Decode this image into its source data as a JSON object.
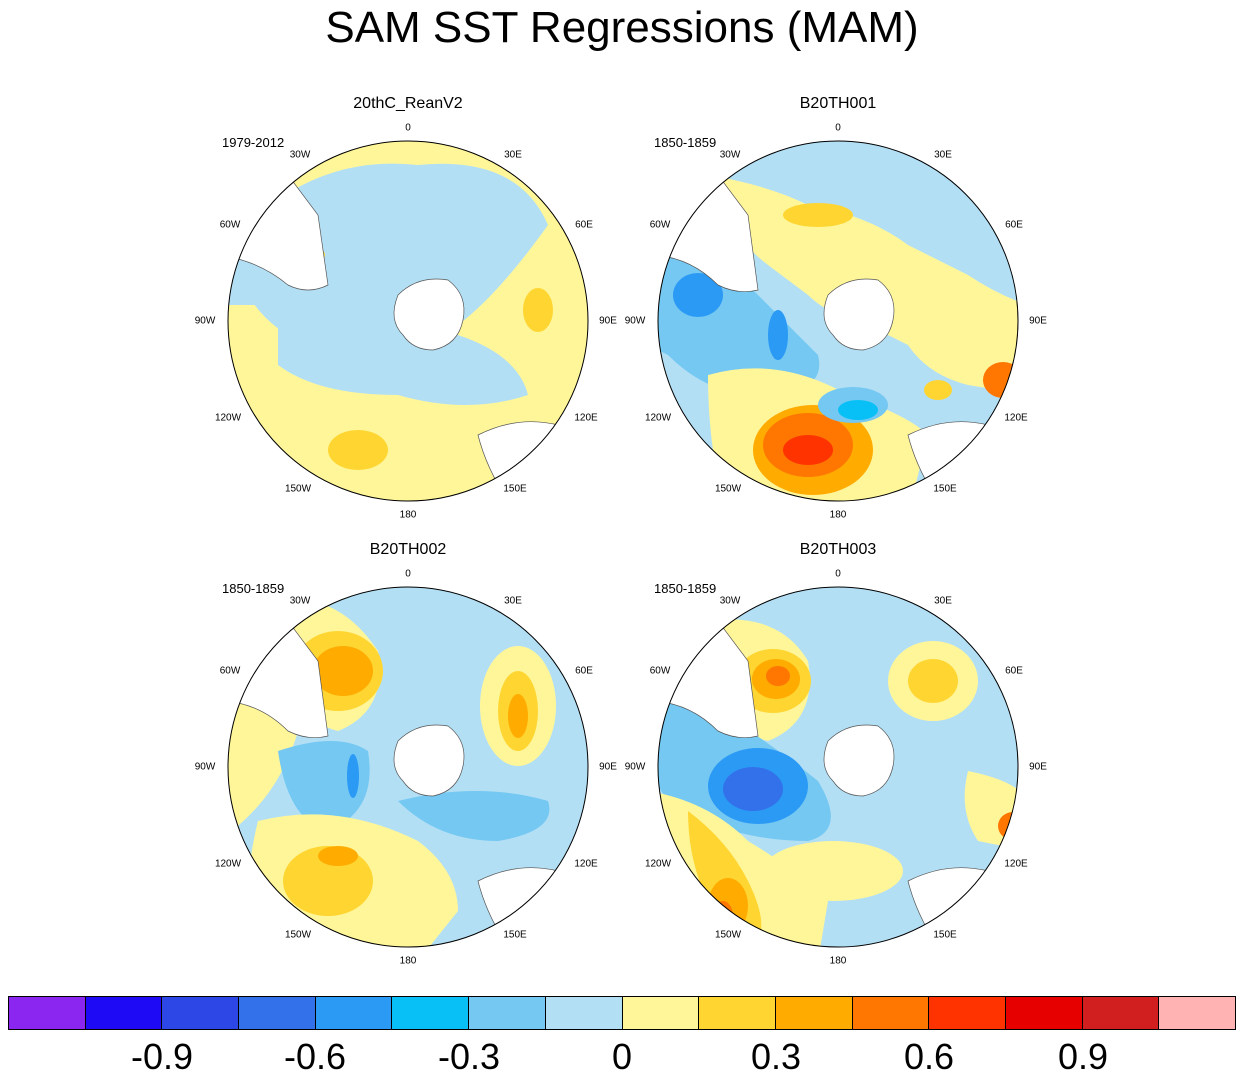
{
  "figure_title": "SAM SST Regressions (MAM)",
  "panels": [
    {
      "title": "20thC_ReanV2",
      "period": "1979-2012"
    },
    {
      "title": "B20TH001",
      "period": "1850-1859"
    },
    {
      "title": "B20TH002",
      "period": "1850-1859"
    },
    {
      "title": "B20TH003",
      "period": "1850-1859"
    }
  ],
  "longitude_labels": [
    "0",
    "30E",
    "60E",
    "90E",
    "120E",
    "150E",
    "180",
    "150W",
    "120W",
    "90W",
    "60W",
    "30W"
  ],
  "colorbar": {
    "colors": [
      "#8a26f0",
      "#1e0af5",
      "#2d46e6",
      "#3271ea",
      "#2b9af5",
      "#08c0f5",
      "#74c8f2",
      "#b3dff5",
      "#fff69a",
      "#ffd532",
      "#ffab00",
      "#ff7700",
      "#ff3300",
      "#e60000",
      "#d11e1e",
      "#ffb3b3"
    ],
    "tick_labels": [
      "-0.9",
      "-0.6",
      "-0.3",
      "0",
      "0.3",
      "0.6",
      "0.9"
    ]
  },
  "colors": {
    "land": "#ffffff",
    "coastline": "#555555"
  }
}
